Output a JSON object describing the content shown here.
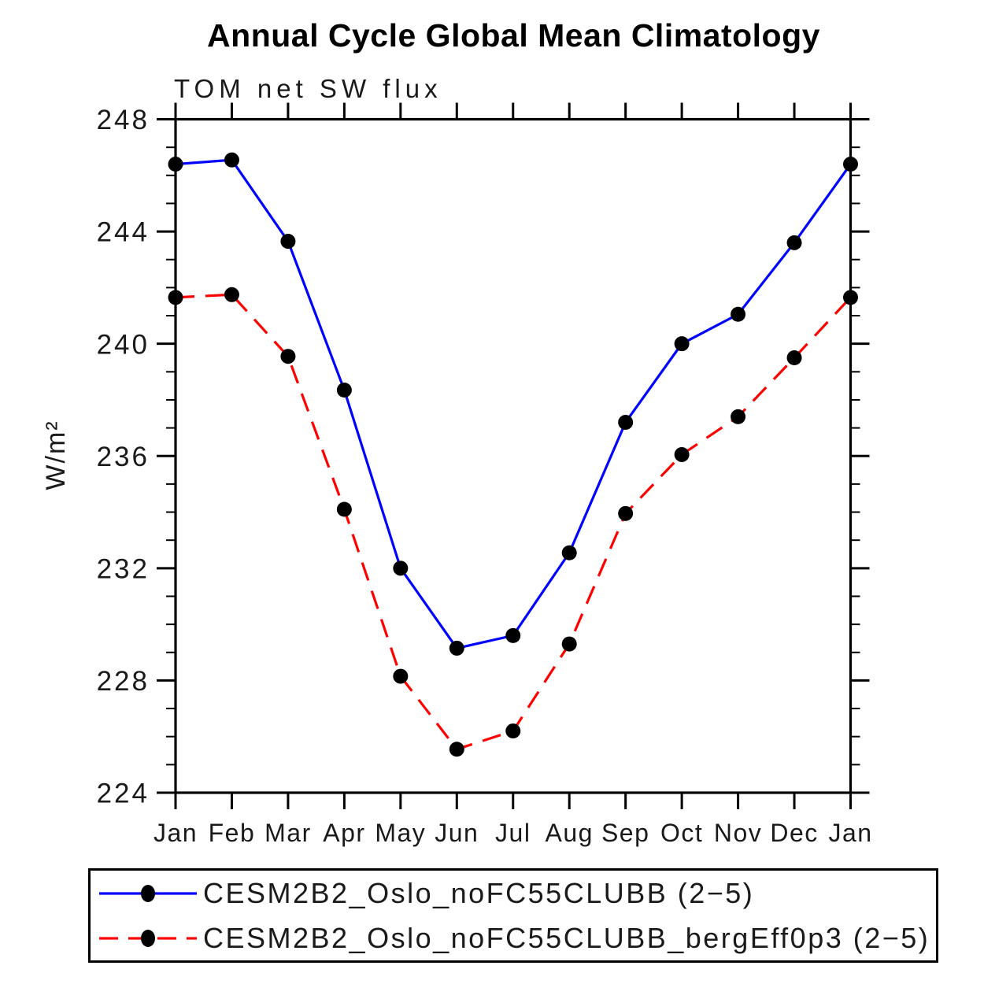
{
  "header": {
    "title": "Annual Cycle Global Mean Climatology",
    "subtitle": "TOM net SW flux"
  },
  "colors": {
    "series1_line": "#0000ff",
    "series2_line": "#ff0000",
    "marker": "#000000",
    "axis": "#000000",
    "background": "#ffffff"
  },
  "chart_data": {
    "type": "line",
    "title": "Annual Cycle Global Mean Climatology",
    "subtitle": "TOM net SW flux",
    "ylabel": "W/m²",
    "xlabel": "",
    "categories": [
      "Jan",
      "Feb",
      "Mar",
      "Apr",
      "May",
      "Jun",
      "Jul",
      "Aug",
      "Sep",
      "Oct",
      "Nov",
      "Dec",
      "Jan"
    ],
    "ylim": [
      224,
      248
    ],
    "yticks_major": [
      224,
      228,
      232,
      236,
      240,
      244,
      248
    ],
    "ytick_minor_step": 1,
    "grid": "off",
    "legend_position": "bottom",
    "series": [
      {
        "name": "CESM2B2_Oslo_noFC55CLUBB (2−5)",
        "color": "#0000ff",
        "line_style": "solid",
        "marker": "filled-circle",
        "marker_color": "#000000",
        "values": [
          246.4,
          246.55,
          243.65,
          238.35,
          232.0,
          229.15,
          229.6,
          232.55,
          237.2,
          240.0,
          241.05,
          243.6,
          246.4
        ]
      },
      {
        "name": "CESM2B2_Oslo_noFC55CLUBB_bergEff0p3 (2−5)",
        "color": "#ff0000",
        "line_style": "dashed",
        "marker": "filled-circle",
        "marker_color": "#000000",
        "values": [
          241.65,
          241.75,
          239.55,
          234.1,
          228.15,
          225.55,
          226.2,
          229.3,
          233.95,
          236.05,
          237.4,
          239.5,
          241.65
        ]
      }
    ]
  }
}
